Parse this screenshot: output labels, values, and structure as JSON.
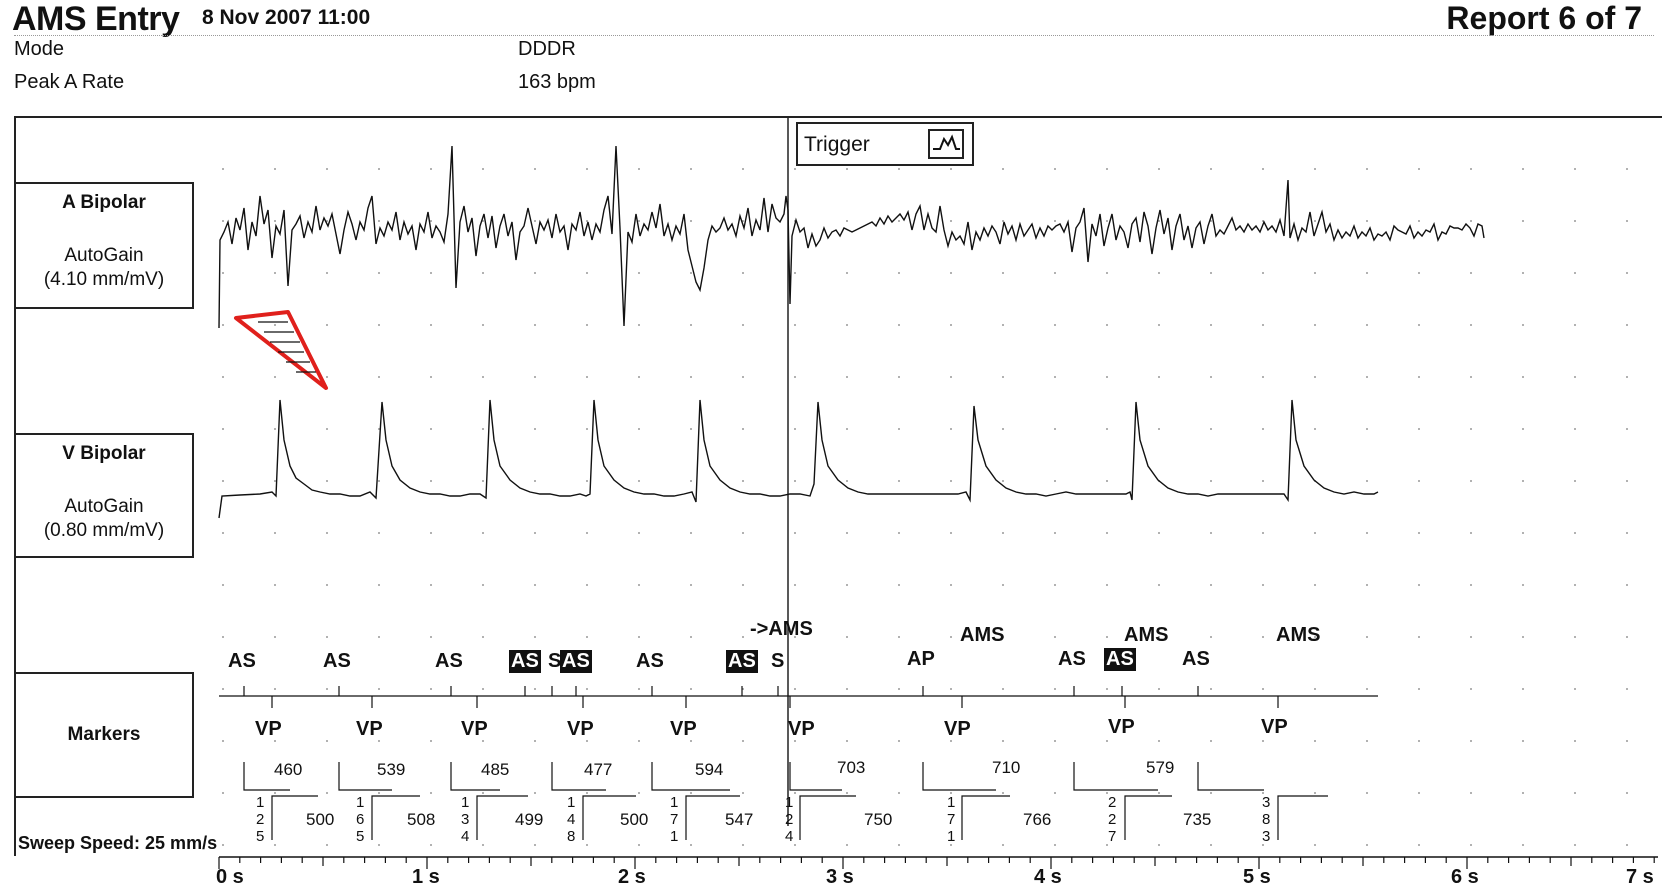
{
  "header": {
    "title": "AMS Entry",
    "datetime": "8 Nov 2007 11:00",
    "report": "Report 6 of 7"
  },
  "info": [
    {
      "label": "Mode",
      "value": "DDDR"
    },
    {
      "label": "Peak A Rate",
      "value": "163 bpm"
    }
  ],
  "channels": {
    "a": {
      "name": "A Bipolar",
      "gain": "AutoGain",
      "scale": "(4.10 mm/mV)"
    },
    "v": {
      "name": "V Bipolar",
      "gain": "AutoGain",
      "scale": "(0.80 mm/mV)"
    },
    "markers": {
      "name": "Markers"
    }
  },
  "trigger": {
    "label": "Trigger",
    "icon": "trigger-waveform-icon"
  },
  "sweep_speed": "Sweep Speed: 25 mm/s",
  "time_axis": [
    "0 s",
    "1 s",
    "2 s",
    "3 s",
    "4 s",
    "5 s",
    "6 s",
    "7 s"
  ],
  "event_labels": {
    "to_ams": "->AMS",
    "ams": "AMS"
  },
  "atrial_markers": [
    "AS",
    "AS",
    "AS",
    "AS",
    "S",
    "AS",
    "AS",
    "AS",
    "S",
    "AP",
    "AS",
    "AS",
    "AS"
  ],
  "ventricular_markers": [
    "VP",
    "VP",
    "VP",
    "VP",
    "VP",
    "VP",
    "VP",
    "VP",
    "VP"
  ],
  "av_intervals": [
    "460",
    "539",
    "485",
    "477",
    "594",
    "703",
    "710",
    "579"
  ],
  "vv_intervals": [
    "500",
    "508",
    "499",
    "500",
    "547",
    "750",
    "766",
    "735"
  ],
  "vv_digits": [
    [
      "1",
      "2",
      "5"
    ],
    [
      "1",
      "6",
      "5"
    ],
    [
      "1",
      "3",
      "4"
    ],
    [
      "1",
      "4",
      "8"
    ],
    [
      "1",
      "7",
      "1"
    ],
    [
      "1",
      "2",
      "4"
    ],
    [
      "1",
      "7",
      "1"
    ],
    [
      "2",
      "2",
      "7"
    ],
    [
      "3",
      "8",
      "3"
    ]
  ],
  "colors": {
    "annotation_arrow": "#e0201c",
    "trace": "#111111"
  }
}
